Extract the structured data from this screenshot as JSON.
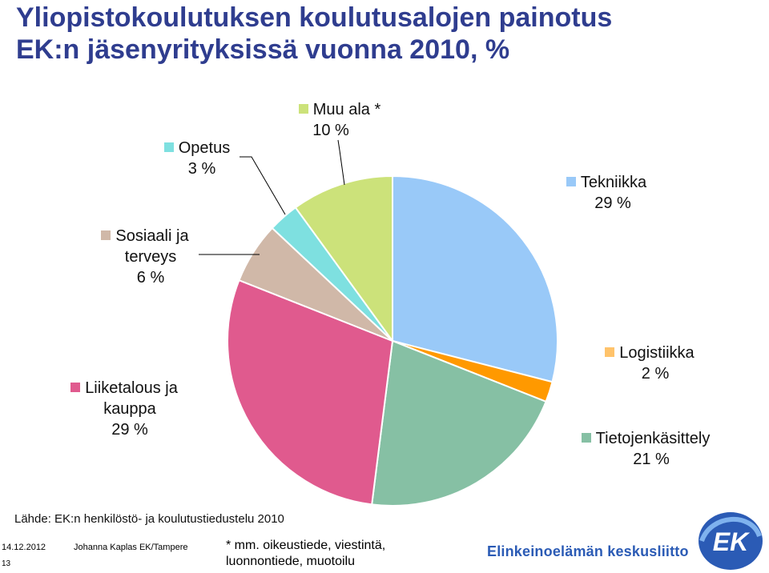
{
  "title_line1": "Yliopistokoulutuksen koulutusalojen painotus",
  "title_line2": "EK:n jäsenyrityksissä vuonna 2010, %",
  "chart_data": {
    "type": "pie",
    "title": "Yliopistokoulutuksen koulutusalojen painotus EK:n jäsenyrityksissä vuonna 2010, %",
    "slices": [
      {
        "name": "Tekniikka",
        "value": 29,
        "label": "29 %",
        "color": "#99c9f8"
      },
      {
        "name": "Logistiikka",
        "value": 2,
        "label": "2 %",
        "color": "#ff9900"
      },
      {
        "name": "Tietojenkäsittely",
        "value": 21,
        "label": "21 %",
        "color": "#86c0a4"
      },
      {
        "name": "Liiketalous ja kauppa",
        "value": 29,
        "label": "29 %",
        "color": "#e05a8e"
      },
      {
        "name": "Sosiaali ja terveys",
        "value": 6,
        "label": "6 %",
        "color": "#d0b8a8"
      },
      {
        "name": "Opetus",
        "value": 3,
        "label": "3 %",
        "color": "#7ee0e0"
      },
      {
        "name": "Muu ala *",
        "value": 10,
        "label": "10 %",
        "color": "#cce27a"
      }
    ]
  },
  "labels": {
    "tekniikka": {
      "name": "Tekniikka",
      "value": "29 %"
    },
    "logistiikka": {
      "name": "Logistiikka",
      "value": "2 %"
    },
    "tietojenkasittely": {
      "name": "Tietojenkäsittely",
      "value": "21 %"
    },
    "liiketalous_line1": "Liiketalous ja",
    "liiketalous_line2": "kauppa",
    "liiketalous_value": "29 %",
    "sosiaali_line1": "Sosiaali ja",
    "sosiaali_line2": "terveys",
    "sosiaali_value": "6 %",
    "opetus": {
      "name": "Opetus",
      "value": "3 %"
    },
    "muu": {
      "name": "Muu ala *",
      "value": "10 %"
    }
  },
  "source": "Lähde: EK:n henkilöstö- ja koulutustiedustelu 2010",
  "footer": {
    "date": "14.12.2012",
    "author": "Johanna Kaplas EK/Tampere",
    "page": "13",
    "footnote_line1": "* mm. oikeustiede, viestintä,",
    "footnote_line2": "luonnontiede, muotoilu",
    "brand": "Elinkeinoelämän keskusliitto",
    "logo_text": "EK"
  }
}
